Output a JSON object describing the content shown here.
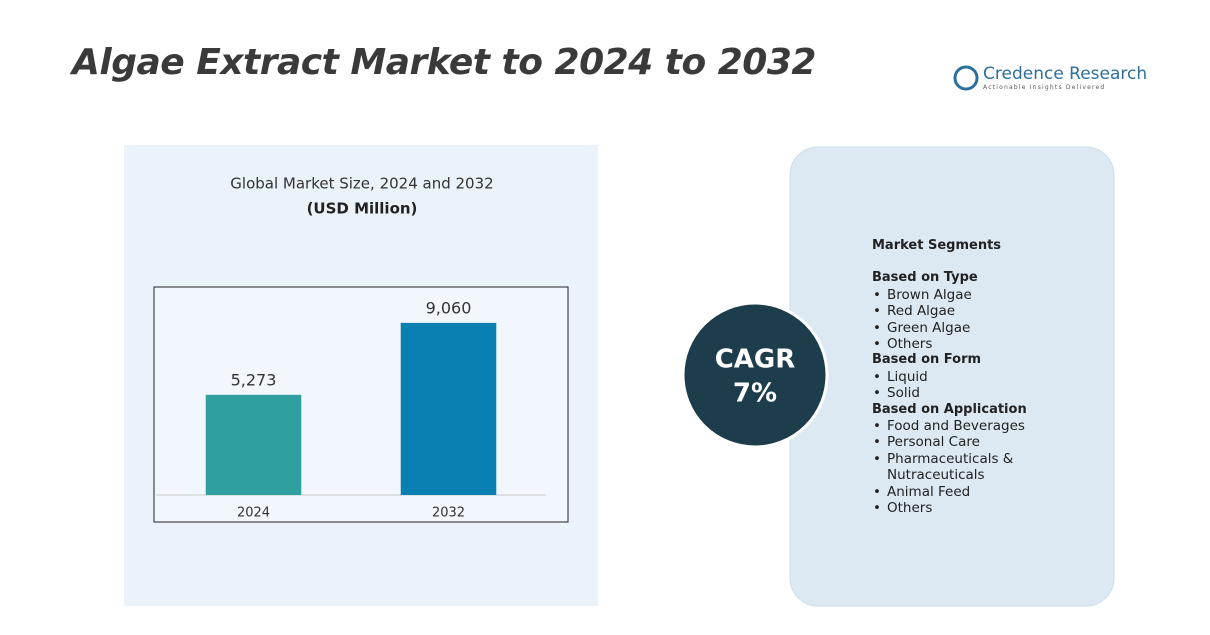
{
  "header": {
    "title": "Algae Extract Market to 2024 to 2032",
    "logo_name": "Credence Research",
    "logo_tagline": "Actionable Insights Delivered"
  },
  "chart_data": {
    "type": "bar",
    "title": "Global Market Size, 2024 and 2032",
    "subtitle": "(USD Million)",
    "categories": [
      "2024",
      "2032"
    ],
    "values": [
      5273,
      9060
    ],
    "value_labels": [
      "5,273",
      "9,060"
    ],
    "colors": [
      "#2fa09f",
      "#0a80b2"
    ],
    "ylim": [
      0,
      10000
    ]
  },
  "cagr": {
    "label": "CAGR",
    "value": "7%"
  },
  "segments": {
    "title": "Market Segments",
    "groups": [
      {
        "heading": "Based on Type",
        "items": [
          "Brown Algae",
          "Red Algae",
          "Green Algae",
          "Others"
        ]
      },
      {
        "heading": "Based on Form",
        "items": [
          "Liquid",
          "Solid"
        ]
      },
      {
        "heading": "Based on Application",
        "items": [
          "Food and Beverages",
          "Personal Care",
          "Pharmaceuticals & Nutraceuticals",
          "Animal Feed",
          "Others"
        ]
      }
    ]
  }
}
